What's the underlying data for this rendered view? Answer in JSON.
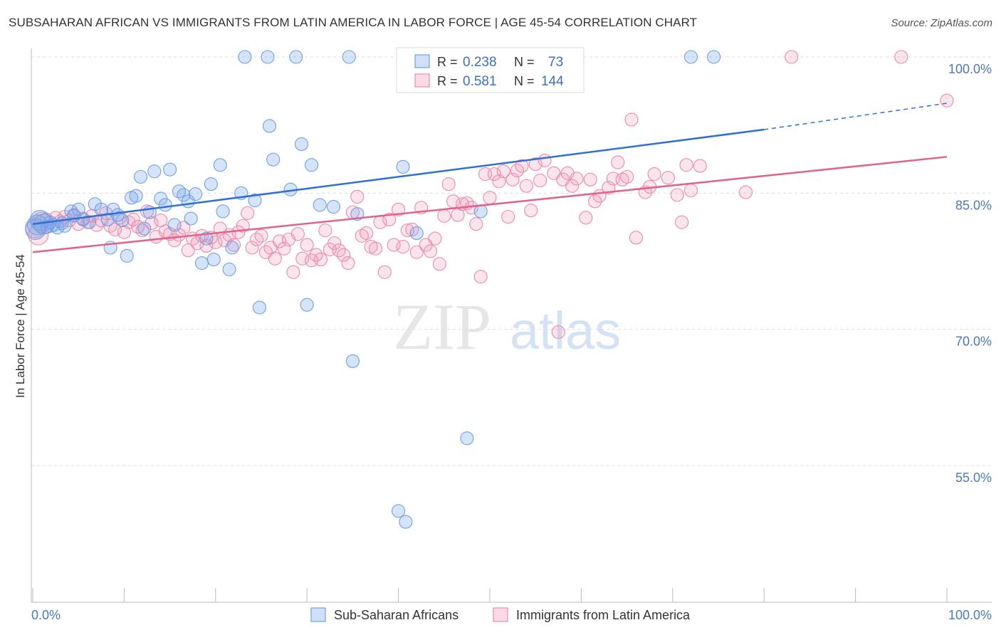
{
  "title": "SUBSAHARAN AFRICAN VS IMMIGRANTS FROM LATIN AMERICA IN LABOR FORCE | AGE 45-54 CORRELATION CHART",
  "source": "Source: ZipAtlas.com",
  "watermark": {
    "zip": "ZIP",
    "atlas": "atlas"
  },
  "colors": {
    "blue": "#6fa0e8",
    "blue_fill": "rgba(120,165,235,0.30)",
    "blue_line": "#2f6fd6",
    "pink": "#ee8aaa",
    "pink_fill": "rgba(240,150,180,0.25)",
    "pink_line": "#e0638e",
    "tick_text": "#4a78c8",
    "grid": "#dddddd"
  },
  "stats_box": {
    "rows": [
      {
        "r_label": "R =",
        "r_value": "0.238",
        "n_label": "N =",
        "n_value": "73"
      },
      {
        "r_label": "R =",
        "r_value": "0.581",
        "n_label": "N =",
        "n_value": "144"
      }
    ]
  },
  "chart_data": {
    "type": "scatter",
    "title": "SUBSAHARAN AFRICAN VS IMMIGRANTS FROM LATIN AMERICA IN LABOR FORCE | AGE 45-54 CORRELATION CHART",
    "xlabel": "",
    "ylabel": "In Labor Force | Age 45-54",
    "xlim": [
      0,
      100
    ],
    "ylim": [
      42,
      102
    ],
    "x_tick_labels": [
      "0.0%",
      "100.0%"
    ],
    "y_ticks": [
      55,
      70,
      85,
      100
    ],
    "y_tick_labels": [
      "55.0%",
      "70.0%",
      "85.0%",
      "100.0%"
    ],
    "grid": true,
    "legend_position": "bottom-center",
    "series": [
      {
        "name": "Sub-Saharan Africans",
        "r": 0.238,
        "n": 73,
        "trend": {
          "x0": 0,
          "y0": 81.6,
          "x1": 80,
          "y1": 92.0,
          "dashed_to_x": 100,
          "dashed_to_y": 94.9
        },
        "points": [
          [
            0.5,
            81.5
          ],
          [
            0.8,
            82
          ],
          [
            1.2,
            81.6
          ],
          [
            1.6,
            81.3
          ],
          [
            1.9,
            81.8
          ],
          [
            2.3,
            81.5
          ],
          [
            2.7,
            81.2
          ],
          [
            3.2,
            81.7
          ],
          [
            3.5,
            81.4
          ],
          [
            4.2,
            83
          ],
          [
            4.5,
            82.5
          ],
          [
            5.0,
            83.2
          ],
          [
            5.5,
            82.1
          ],
          [
            6.2,
            81.8
          ],
          [
            6.8,
            83.8
          ],
          [
            7.5,
            83.2
          ],
          [
            8.2,
            82.1
          ],
          [
            8.5,
            79
          ],
          [
            8.8,
            83.2
          ],
          [
            9.3,
            82.6
          ],
          [
            9.8,
            82.0
          ],
          [
            10.3,
            78.1
          ],
          [
            10.8,
            84.5
          ],
          [
            11.3,
            84.7
          ],
          [
            11.8,
            86.8
          ],
          [
            12.2,
            81.1
          ],
          [
            12.8,
            82.9
          ],
          [
            13.3,
            87.4
          ],
          [
            14.0,
            84.4
          ],
          [
            14.5,
            83.7
          ],
          [
            15.0,
            87.6
          ],
          [
            15.5,
            81.5
          ],
          [
            16.0,
            85.2
          ],
          [
            16.5,
            84.8
          ],
          [
            17.0,
            84.1
          ],
          [
            17.3,
            82.2
          ],
          [
            17.8,
            84.9
          ],
          [
            18.5,
            77.3
          ],
          [
            19.0,
            80.0
          ],
          [
            19.5,
            86.0
          ],
          [
            19.8,
            77.7
          ],
          [
            20.5,
            88.1
          ],
          [
            20.8,
            83.0
          ],
          [
            21.5,
            76.6
          ],
          [
            21.8,
            79.0
          ],
          [
            22.8,
            85.0
          ],
          [
            23.2,
            100
          ],
          [
            24.3,
            84.2
          ],
          [
            24.8,
            72.4
          ],
          [
            25.7,
            100
          ],
          [
            25.9,
            92.4
          ],
          [
            26.3,
            88.7
          ],
          [
            28.2,
            85.4
          ],
          [
            28.8,
            100
          ],
          [
            29.4,
            90.4
          ],
          [
            30.0,
            72.7
          ],
          [
            30.5,
            88.1
          ],
          [
            31.4,
            83.7
          ],
          [
            32.9,
            83.5
          ],
          [
            34.6,
            100
          ],
          [
            35.0,
            66.5
          ],
          [
            35.5,
            82.7
          ],
          [
            40.0,
            50.0
          ],
          [
            40.5,
            87.9
          ],
          [
            40.8,
            48.8
          ],
          [
            42.0,
            80.6
          ],
          [
            43.0,
            100
          ],
          [
            47.5,
            58.0
          ],
          [
            49.0,
            83.0
          ],
          [
            52.0,
            100
          ],
          [
            72.0,
            100
          ],
          [
            74.5,
            100
          ],
          [
            0.3,
            81.0
          ]
        ]
      },
      {
        "name": "Immigrants from Latin America",
        "r": 0.581,
        "n": 144,
        "trend": {
          "x0": 0,
          "y0": 78.5,
          "x1": 100,
          "y1": 89.0
        },
        "points": [
          [
            0.3,
            81.2
          ],
          [
            0.6,
            80.4
          ],
          [
            1.0,
            81.8
          ],
          [
            1.5,
            82.1
          ],
          [
            2.0,
            81.4
          ],
          [
            2.5,
            82.3
          ],
          [
            3.0,
            81.9
          ],
          [
            3.5,
            82.4
          ],
          [
            4.0,
            82.0
          ],
          [
            4.5,
            82.6
          ],
          [
            5.0,
            81.6
          ],
          [
            5.5,
            82.2
          ],
          [
            6.0,
            81.8
          ],
          [
            6.5,
            82.5
          ],
          [
            7.0,
            81.5
          ],
          [
            7.5,
            82.0
          ],
          [
            8.0,
            82.8
          ],
          [
            8.5,
            81.4
          ],
          [
            9.0,
            81.0
          ],
          [
            9.5,
            82.3
          ],
          [
            10.0,
            80.7
          ],
          [
            10.5,
            81.8
          ],
          [
            11.0,
            82.1
          ],
          [
            11.5,
            81.3
          ],
          [
            12.0,
            80.9
          ],
          [
            12.5,
            83.0
          ],
          [
            13.0,
            81.7
          ],
          [
            13.5,
            80.2
          ],
          [
            14.0,
            82.0
          ],
          [
            14.5,
            80.8
          ],
          [
            15.0,
            80.5
          ],
          [
            15.5,
            79.8
          ],
          [
            16.0,
            80.4
          ],
          [
            16.5,
            81.2
          ],
          [
            17.0,
            78.7
          ],
          [
            17.5,
            80.0
          ],
          [
            18.0,
            79.5
          ],
          [
            18.5,
            80.3
          ],
          [
            19.0,
            79.2
          ],
          [
            19.5,
            80.1
          ],
          [
            20.0,
            79.6
          ],
          [
            20.5,
            81.1
          ],
          [
            21.0,
            79.8
          ],
          [
            21.5,
            80.4
          ],
          [
            22.0,
            79.3
          ],
          [
            22.5,
            80.7
          ],
          [
            23.0,
            81.4
          ],
          [
            23.5,
            82.8
          ],
          [
            24.0,
            79.0
          ],
          [
            24.5,
            79.9
          ],
          [
            25.0,
            80.3
          ],
          [
            25.5,
            78.5
          ],
          [
            26.0,
            79.0
          ],
          [
            26.5,
            77.8
          ],
          [
            27.0,
            79.7
          ],
          [
            27.5,
            78.9
          ],
          [
            28.0,
            79.9
          ],
          [
            28.5,
            76.3
          ],
          [
            29.0,
            80.5
          ],
          [
            29.5,
            77.8
          ],
          [
            30.0,
            79.3
          ],
          [
            30.5,
            77.6
          ],
          [
            31.0,
            78.2
          ],
          [
            31.5,
            77.7
          ],
          [
            32.0,
            80.9
          ],
          [
            32.5,
            78.8
          ],
          [
            33.0,
            79.5
          ],
          [
            33.5,
            78.7
          ],
          [
            34.0,
            78.2
          ],
          [
            34.5,
            77.3
          ],
          [
            35.0,
            82.9
          ],
          [
            35.5,
            84.6
          ],
          [
            36.0,
            80.3
          ],
          [
            36.5,
            80.6
          ],
          [
            37.0,
            79.1
          ],
          [
            37.5,
            78.9
          ],
          [
            38.0,
            81.8
          ],
          [
            38.5,
            76.3
          ],
          [
            39.0,
            82.1
          ],
          [
            39.5,
            79.3
          ],
          [
            40.0,
            83.2
          ],
          [
            40.5,
            79.1
          ],
          [
            41.0,
            80.9
          ],
          [
            41.5,
            81.0
          ],
          [
            42.0,
            78.5
          ],
          [
            42.5,
            83.4
          ],
          [
            43.0,
            79.3
          ],
          [
            43.5,
            78.6
          ],
          [
            44.0,
            80.0
          ],
          [
            44.5,
            77.2
          ],
          [
            45.0,
            82.5
          ],
          [
            45.5,
            86.0
          ],
          [
            46.0,
            84.1
          ],
          [
            46.5,
            82.6
          ],
          [
            47.0,
            83.8
          ],
          [
            47.5,
            83.9
          ],
          [
            48.0,
            83.4
          ],
          [
            48.5,
            81.6
          ],
          [
            49.0,
            75.8
          ],
          [
            49.5,
            87.1
          ],
          [
            50.0,
            84.5
          ],
          [
            50.5,
            87.1
          ],
          [
            51.0,
            86.3
          ],
          [
            51.5,
            87.4
          ],
          [
            52.0,
            82.4
          ],
          [
            52.5,
            86.5
          ],
          [
            53.0,
            87.5
          ],
          [
            53.5,
            88.0
          ],
          [
            54.0,
            85.8
          ],
          [
            54.5,
            83.1
          ],
          [
            55.0,
            88.2
          ],
          [
            55.5,
            86.4
          ],
          [
            56.0,
            88.6
          ],
          [
            57.0,
            87.2
          ],
          [
            57.5,
            69.7
          ],
          [
            58.0,
            86.5
          ],
          [
            58.5,
            87.2
          ],
          [
            59.0,
            85.8
          ],
          [
            59.5,
            86.6
          ],
          [
            60.5,
            82.3
          ],
          [
            61.0,
            86.5
          ],
          [
            61.5,
            84.1
          ],
          [
            62.0,
            84.7
          ],
          [
            63.0,
            85.6
          ],
          [
            63.5,
            86.6
          ],
          [
            64.0,
            88.4
          ],
          [
            64.5,
            86.5
          ],
          [
            65.0,
            86.8
          ],
          [
            65.5,
            93.1
          ],
          [
            66.0,
            80.1
          ],
          [
            67.0,
            85.1
          ],
          [
            67.5,
            85.7
          ],
          [
            68.0,
            87.1
          ],
          [
            69.5,
            86.7
          ],
          [
            70.5,
            84.8
          ],
          [
            71.0,
            81.8
          ],
          [
            71.5,
            88.1
          ],
          [
            72.0,
            85.3
          ],
          [
            73.0,
            88.0
          ],
          [
            78.0,
            85.1
          ],
          [
            83.0,
            100
          ],
          [
            95.0,
            100
          ],
          [
            100.0,
            95.2
          ]
        ]
      }
    ]
  },
  "legend": {
    "items": [
      {
        "label": "Sub-Saharan Africans"
      },
      {
        "label": "Immigrants from Latin America"
      }
    ]
  }
}
